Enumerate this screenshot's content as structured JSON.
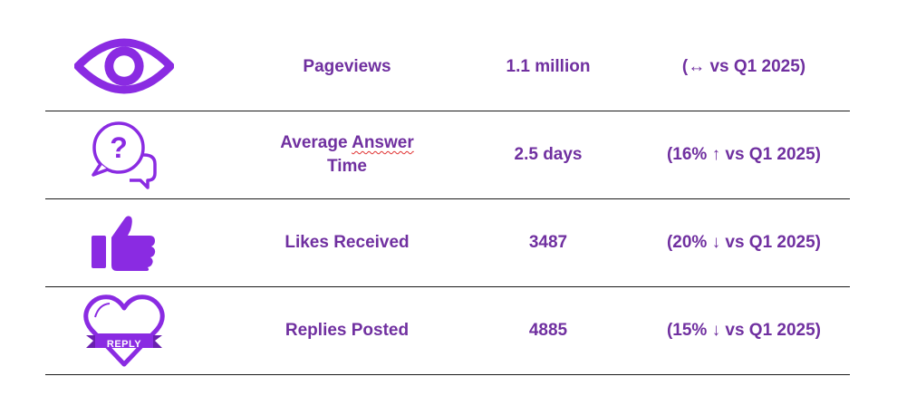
{
  "colors": {
    "accent": "#7030a0",
    "icon": "#8a2be2",
    "rule": "#1a1a1a"
  },
  "rows": [
    {
      "icon": "eye-icon",
      "metric": "Pageviews",
      "metric_line2": "",
      "value": "1.1 million",
      "change": "(↔ vs Q1 2025)"
    },
    {
      "icon": "question-chat-icon",
      "metric": "Average Answer",
      "metric_line2": "Time",
      "value": "2.5 days",
      "change": "(16% ↑ vs Q1 2025)"
    },
    {
      "icon": "thumbs-up-icon",
      "metric": "Likes Received",
      "metric_line2": "",
      "value": "3487",
      "change": "(20% ↓ vs Q1 2025)"
    },
    {
      "icon": "reply-heart-icon",
      "metric": "Replies Posted",
      "metric_line2": "",
      "value": "4885",
      "change": "(15% ↓ vs Q1 2025)",
      "icon_label": "REPLY"
    }
  ]
}
